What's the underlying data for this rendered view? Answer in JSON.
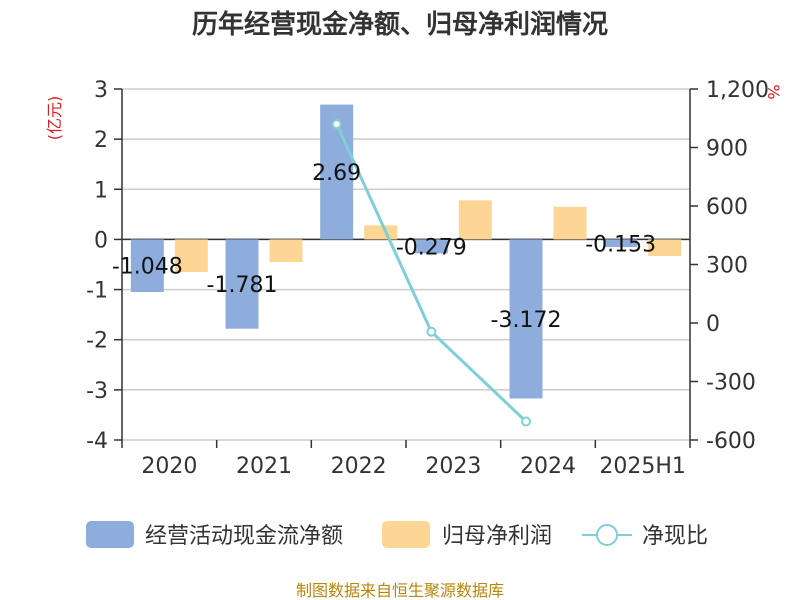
{
  "title": "历年经营现金净额、归母净利润情况",
  "source": "制图数据来自恒生聚源数据库",
  "colors": {
    "cash_flow": "#8eaddc",
    "net_profit": "#fdd594",
    "ratio": "#7fd0d6"
  },
  "chart_data": {
    "type": "bar",
    "categories": [
      "2020",
      "2021",
      "2022",
      "2023",
      "2024",
      "2025H1"
    ],
    "y_left": {
      "label": "(亿元)",
      "range": [
        -4,
        3
      ],
      "ticks": [
        "3",
        "2",
        "1",
        "0",
        "-1",
        "-2",
        "-3",
        "-4"
      ]
    },
    "y_right": {
      "label": "%",
      "range": [
        -600,
        1200
      ],
      "ticks": [
        "1,200",
        "900",
        "600",
        "300",
        "0",
        "-300",
        "-600"
      ]
    },
    "series": [
      {
        "name": "经营活动现金流净额",
        "type": "bar",
        "axis": "left",
        "values": [
          -1.048,
          -1.781,
          2.69,
          -0.279,
          -3.172,
          -0.153
        ],
        "labels": [
          "-1.048",
          "-1.781",
          "2.69",
          "-0.279",
          "-3.172",
          "-0.153"
        ]
      },
      {
        "name": "归母净利润",
        "type": "bar",
        "axis": "left",
        "values": [
          -0.65,
          -0.45,
          0.28,
          0.78,
          0.65,
          -0.33
        ]
      },
      {
        "name": "净现比",
        "type": "line",
        "axis": "right",
        "values": [
          null,
          null,
          1020,
          -45,
          -505,
          null
        ]
      }
    ],
    "grid": true,
    "legend": "bottom"
  }
}
